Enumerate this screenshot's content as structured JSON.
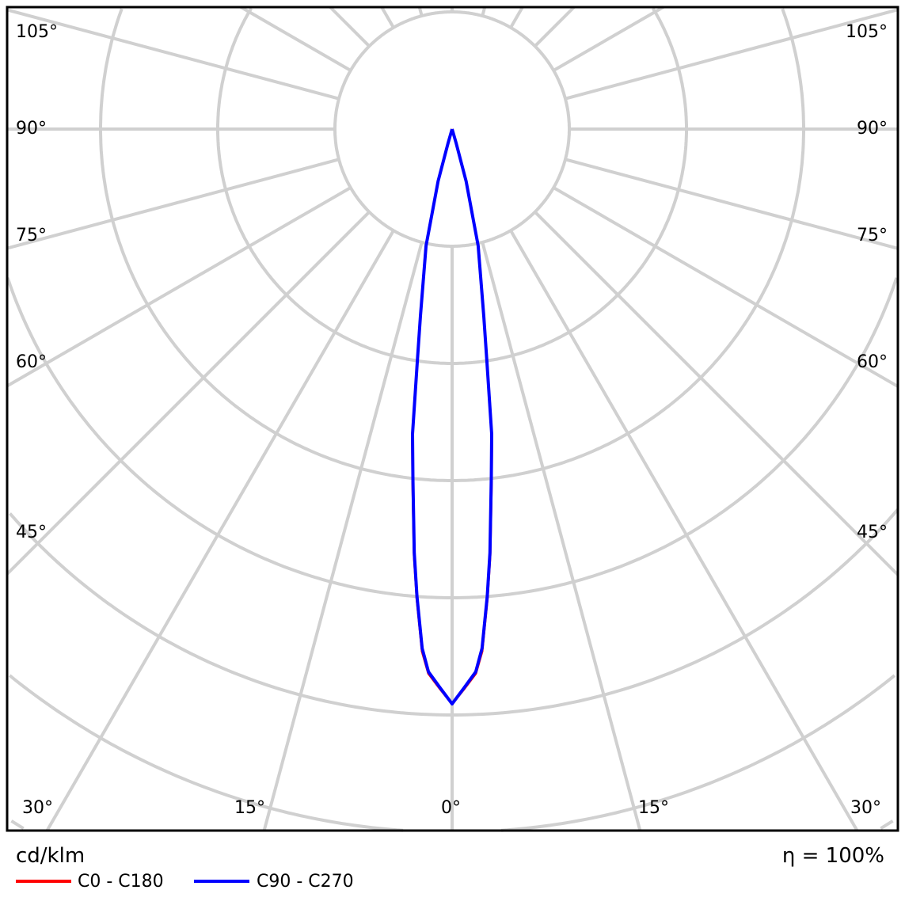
{
  "chart_data": {
    "type": "polar-line",
    "unit_label": "cd/klm",
    "efficiency_label": "η = 100%",
    "angle_labels_side": [
      "105°",
      "90°",
      "75°",
      "60°",
      "45°",
      "30°"
    ],
    "angle_labels_bottom": [
      "15°",
      "0°",
      "15°",
      "30°"
    ],
    "grid": true,
    "angle_step_deg": 15,
    "series": [
      {
        "name": "C0 - C180",
        "color": "#ff0000",
        "angles": [
          0,
          1.2,
          2.5,
          3.3,
          4.3,
          5.1,
          6.4,
          7.4,
          8.5,
          9.6,
          12.6,
          15,
          16,
          17,
          90
        ],
        "values": [
          1.0,
          0.975,
          0.948,
          0.91,
          0.82,
          0.745,
          0.617,
          0.538,
          0.413,
          0.332,
          0.21,
          0.095,
          0.025,
          0.0,
          0.0
        ]
      },
      {
        "name": "C90 - C270",
        "color": "#0000ff",
        "angles": [
          0,
          1.2,
          2.5,
          3.3,
          4.3,
          5.1,
          6.4,
          7.4,
          8.5,
          9.6,
          12.6,
          15,
          16,
          17,
          90
        ],
        "values": [
          1.0,
          0.973,
          0.945,
          0.905,
          0.815,
          0.74,
          0.612,
          0.535,
          0.41,
          0.33,
          0.208,
          0.094,
          0.025,
          0.0,
          0.0
        ]
      }
    ]
  }
}
